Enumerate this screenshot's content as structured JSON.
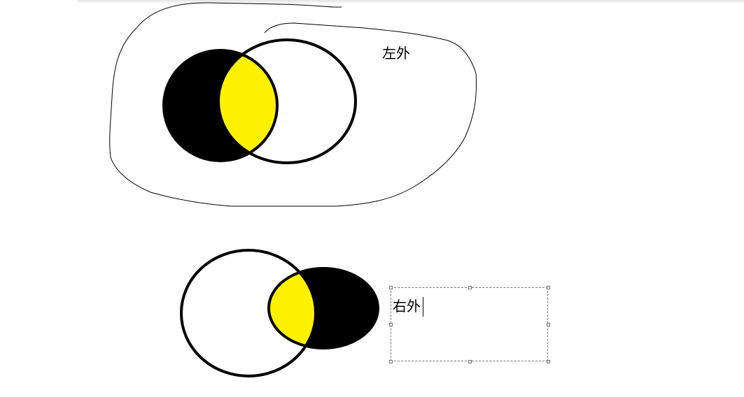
{
  "canvas": {
    "labels": {
      "left_outside": "左外",
      "right_outside": "右外"
    },
    "colors": {
      "background": "#ffffff",
      "outline": "#000000",
      "shaded_region": "#000000",
      "intersection": "#fff200",
      "selection_border": "#707070"
    },
    "text_box": {
      "state": "editing",
      "caret_visible": true
    }
  }
}
